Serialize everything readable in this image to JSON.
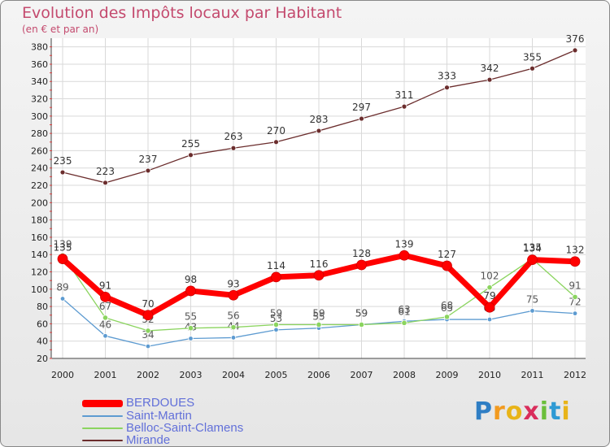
{
  "chart_data": {
    "type": "line",
    "title": "Evolution des Impôts locaux par Habitant",
    "subtitle": "(en € et par an)",
    "xlabel": "",
    "ylabel": "",
    "ylim": [
      20,
      390
    ],
    "yticks": [
      20,
      40,
      60,
      80,
      100,
      120,
      140,
      160,
      180,
      200,
      220,
      240,
      260,
      280,
      300,
      320,
      340,
      360,
      380
    ],
    "categories": [
      "2000",
      "2001",
      "2002",
      "2003",
      "2004",
      "2005",
      "2006",
      "2007",
      "2008",
      "2009",
      "2010",
      "2011",
      "2012"
    ],
    "series": [
      {
        "name": "Mirande",
        "color": "#6b2d2d",
        "values": [
          235,
          223,
          237,
          255,
          263,
          270,
          283,
          297,
          311,
          333,
          342,
          355,
          376
        ]
      },
      {
        "name": "Saint-Martin",
        "color": "#5d9bd1",
        "values": [
          89,
          46,
          34,
          43,
          44,
          53,
          55,
          59,
          63,
          65,
          65,
          75,
          72
        ]
      },
      {
        "name": "Belloc-Saint-Clamens",
        "color": "#8bd45f",
        "values": [
          139,
          67,
          52,
          55,
          56,
          59,
          59,
          59,
          61,
          68,
          102,
          135,
          91
        ]
      },
      {
        "name": "BERDOUES",
        "color": "#ff0000",
        "values": [
          135,
          91,
          70,
          98,
          93,
          114,
          116,
          128,
          139,
          127,
          79,
          134,
          132
        ]
      }
    ],
    "legend": [
      "BERDOUES",
      "Saint-Martin",
      "Belloc-Saint-Clamens",
      "Mirande"
    ]
  },
  "brand": {
    "letters": [
      "P",
      "r",
      "o",
      "x",
      "i",
      "t",
      "i"
    ]
  }
}
